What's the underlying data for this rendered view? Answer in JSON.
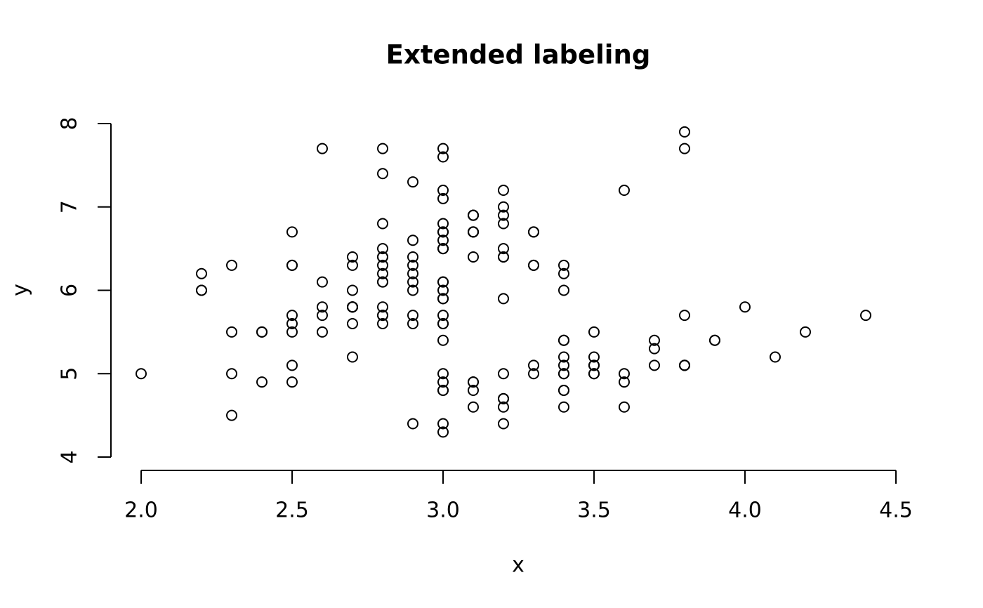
{
  "chart_data": {
    "type": "scatter",
    "title": "Extended labeling",
    "x_label": "x",
    "y_label": "y",
    "x": [
      3.5,
      3.0,
      3.2,
      3.1,
      3.6,
      3.9,
      3.4,
      3.4,
      2.9,
      3.1,
      3.7,
      3.4,
      3.0,
      3.0,
      4.0,
      4.4,
      3.9,
      3.5,
      3.8,
      3.8,
      3.4,
      3.7,
      3.6,
      3.3,
      3.4,
      3.0,
      3.4,
      3.5,
      3.4,
      3.2,
      3.1,
      3.4,
      4.1,
      4.2,
      3.1,
      3.2,
      3.5,
      3.6,
      3.0,
      3.4,
      3.5,
      2.3,
      3.2,
      3.5,
      3.8,
      3.0,
      3.8,
      3.2,
      3.7,
      3.3,
      3.2,
      3.2,
      3.1,
      2.3,
      2.8,
      2.8,
      3.3,
      2.4,
      2.9,
      2.7,
      2.0,
      3.0,
      2.2,
      2.9,
      2.9,
      3.1,
      3.0,
      2.7,
      2.2,
      2.5,
      3.2,
      2.8,
      2.5,
      2.8,
      2.9,
      3.0,
      2.8,
      3.0,
      2.9,
      2.6,
      2.4,
      2.4,
      2.7,
      2.7,
      3.0,
      3.4,
      3.1,
      2.3,
      3.0,
      2.5,
      2.6,
      3.0,
      2.6,
      2.3,
      2.7,
      3.0,
      2.9,
      2.9,
      2.5,
      2.8,
      3.3,
      2.7,
      3.0,
      2.9,
      3.0,
      3.0,
      2.5,
      2.9,
      2.5,
      3.6,
      3.2,
      2.7,
      3.0,
      2.5,
      2.8,
      3.2,
      3.0,
      3.8,
      2.6,
      2.2,
      3.2,
      2.8,
      2.8,
      2.7,
      3.3,
      3.2,
      2.8,
      3.0,
      2.8,
      3.0,
      2.8,
      3.8,
      2.8,
      2.8,
      2.6,
      3.0,
      3.4,
      3.1,
      3.0,
      3.1,
      3.1,
      3.1,
      2.7,
      3.2,
      3.3,
      3.0,
      2.5,
      3.0,
      3.4,
      3.0
    ],
    "y": [
      5.1,
      4.9,
      4.7,
      4.6,
      5.0,
      5.4,
      4.6,
      5.0,
      4.4,
      4.9,
      5.4,
      4.8,
      4.8,
      4.3,
      5.8,
      5.7,
      5.4,
      5.1,
      5.7,
      5.1,
      5.4,
      5.1,
      4.6,
      5.1,
      4.8,
      5.0,
      5.0,
      5.2,
      5.2,
      4.7,
      4.8,
      5.4,
      5.2,
      5.5,
      4.9,
      5.0,
      5.5,
      4.9,
      4.4,
      5.1,
      5.0,
      4.5,
      4.4,
      5.0,
      5.1,
      4.8,
      5.1,
      4.6,
      5.3,
      5.0,
      7.0,
      6.4,
      6.9,
      5.5,
      6.5,
      5.7,
      6.3,
      4.9,
      6.6,
      5.2,
      5.0,
      5.9,
      6.0,
      6.1,
      5.6,
      6.7,
      5.6,
      5.8,
      6.2,
      5.6,
      5.9,
      6.1,
      6.3,
      6.1,
      6.4,
      6.6,
      6.8,
      6.7,
      6.0,
      5.7,
      5.5,
      5.5,
      5.8,
      6.0,
      5.4,
      6.0,
      6.7,
      6.3,
      5.6,
      5.5,
      5.5,
      6.1,
      5.8,
      5.0,
      5.6,
      5.7,
      5.7,
      6.2,
      5.1,
      5.7,
      6.3,
      5.8,
      7.1,
      6.3,
      6.5,
      7.6,
      4.9,
      7.3,
      6.7,
      7.2,
      6.5,
      6.4,
      6.8,
      5.7,
      5.8,
      6.4,
      6.5,
      7.7,
      7.7,
      6.0,
      6.9,
      5.6,
      7.7,
      6.3,
      6.7,
      7.2,
      6.2,
      6.1,
      6.4,
      7.2,
      7.4,
      7.9,
      6.4,
      6.3,
      6.1,
      7.7,
      6.3,
      6.4,
      6.0,
      6.9,
      6.7,
      6.9,
      5.8,
      6.8,
      6.7,
      6.7,
      6.3,
      6.5,
      6.2,
      5.9
    ],
    "xlim": [
      1.9,
      4.5
    ],
    "ylim": [
      3.84,
      8.1
    ],
    "xticks": [
      {
        "value": 2,
        "label": "2.0"
      },
      {
        "value": 2.5,
        "label": "2.5"
      },
      {
        "value": 3,
        "label": "3.0"
      },
      {
        "value": 3.5,
        "label": "3.5"
      },
      {
        "value": 4,
        "label": "4.0"
      },
      {
        "value": 4.5,
        "label": "4.5"
      }
    ],
    "yticks": [
      4,
      5,
      6,
      7,
      8
    ],
    "color": "#000000"
  }
}
